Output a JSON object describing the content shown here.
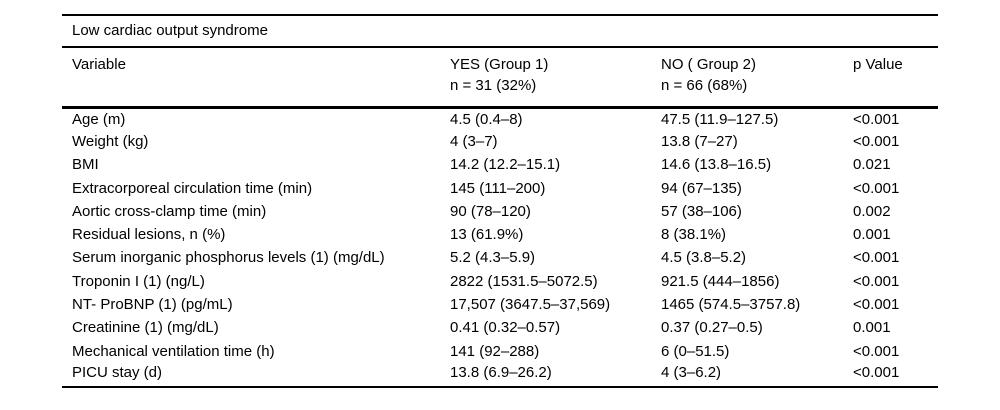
{
  "table": {
    "title": "Low cardiac output syndrome",
    "columns": [
      {
        "label": "Variable",
        "sub": ""
      },
      {
        "label": "YES (Group 1)",
        "sub": "n = 31 (32%)"
      },
      {
        "label": "NO ( Group 2)",
        "sub": "n = 66 (68%)"
      },
      {
        "label": "p Value",
        "sub": ""
      }
    ],
    "rows": [
      {
        "variable": "Age (m)",
        "yes": "4.5 (0.4–8)",
        "no": "47.5 (11.9–127.5)",
        "p": "<0.001"
      },
      {
        "variable": "Weight (kg)",
        "yes": "4 (3–7)",
        "no": "13.8 (7–27)",
        "p": "<0.001"
      },
      {
        "variable": "BMI",
        "yes": "14.2 (12.2–15.1)",
        "no": "14.6 (13.8–16.5)",
        "p": "0.021"
      },
      {
        "variable": "Extracorporeal circulation time (min)",
        "yes": "145 (111–200)",
        "no": "94 (67–135)",
        "p": "<0.001"
      },
      {
        "variable": "Aortic cross-clamp time (min)",
        "yes": "90 (78–120)",
        "no": "57 (38–106)",
        "p": "0.002"
      },
      {
        "variable": "Residual lesions, n (%)",
        "yes": "13 (61.9%)",
        "no": "8 (38.1%)",
        "p": "0.001"
      },
      {
        "variable": "Serum inorganic phosphorus levels (1) (mg/dL)",
        "yes": "5.2 (4.3–5.9)",
        "no": "4.5 (3.8–5.2)",
        "p": "<0.001"
      },
      {
        "variable": "Troponin I (1) (ng/L)",
        "yes": "2822 (1531.5–5072.5)",
        "no": "921.5 (444–1856)",
        "p": "<0.001"
      },
      {
        "variable": "NT- ProBNP (1) (pg/mL)",
        "yes": "17,507 (3647.5–37,569)",
        "no": "1465 (574.5–3757.8)",
        "p": "<0.001"
      },
      {
        "variable": "Creatinine (1) (mg/dL)",
        "yes": "0.41 (0.32–0.57)",
        "no": "0.37 (0.27–0.5)",
        "p": "0.001"
      },
      {
        "variable": "Mechanical ventilation time (h)",
        "yes": "141 (92–288)",
        "no": "6 (0–51.5)",
        "p": "<0.001"
      },
      {
        "variable": "PICU stay (d)",
        "yes": "13.8 (6.9–26.2)",
        "no": "4 (3–6.2)",
        "p": "<0.001"
      }
    ],
    "colors": {
      "text": "#000000",
      "background": "#ffffff",
      "rule": "#000000"
    }
  }
}
